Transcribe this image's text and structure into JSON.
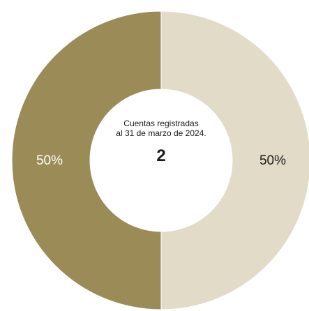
{
  "chart_data": {
    "type": "pie",
    "style": "donut",
    "categories": [
      "",
      ""
    ],
    "values": [
      50,
      50
    ],
    "labels": [
      "50%",
      "50%"
    ],
    "colors": [
      "#9b8c57",
      "#e1dbc8"
    ],
    "label_colors": [
      "#ffffff",
      "#1a1a1a"
    ],
    "center_text": {
      "line1": "Cuentas registradas",
      "line2": "al 31 de marzo de 2024.",
      "value": "2"
    },
    "legend": false
  }
}
